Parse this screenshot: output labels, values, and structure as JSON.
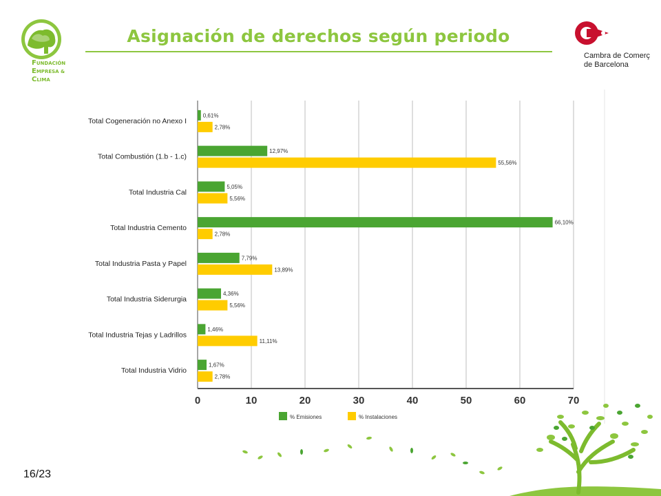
{
  "header": {
    "title": "Asignación de derechos según periodo",
    "logo_left": {
      "initials": [
        "F",
        "E",
        "C"
      ],
      "words": [
        "UNDACIÓN",
        "MPRESA &",
        "LIMA"
      ]
    },
    "logo_right": {
      "line1": "Cambra de Comerç",
      "line2": "de Barcelona"
    }
  },
  "footer": {
    "page": "16/23"
  },
  "colors": {
    "accent": "#8dc63f",
    "emisiones": "#4aa532",
    "instalaciones": "#ffcc00",
    "brand_red": "#c8102e"
  },
  "chart_data": {
    "type": "bar",
    "orientation": "horizontal",
    "title": "",
    "xlabel": "",
    "ylabel": "",
    "xlim": [
      0,
      70
    ],
    "x_ticks": [
      "0",
      "10",
      "20",
      "30",
      "40",
      "50",
      "60",
      "70"
    ],
    "grid": true,
    "legend_position": "bottom",
    "categories": [
      "Total Cogeneración no Anexo I",
      "Total Combustión (1.b - 1.c)",
      "Total Industria Cal",
      "Total Industria Cemento",
      "Total Industria Pasta y Papel",
      "Total Industria Siderurgia",
      "Total Industria Tejas y Ladrillos",
      "Total Industria Vidrio"
    ],
    "series": [
      {
        "name": "% Emisiones",
        "color": "#4aa532",
        "values": [
          0.61,
          12.97,
          5.05,
          66.1,
          7.79,
          4.36,
          1.46,
          1.67
        ],
        "labels": [
          "0,61%",
          "12,97%",
          "5,05%",
          "66,10%",
          "7,79%",
          "4,36%",
          "1,46%",
          "1,67%"
        ]
      },
      {
        "name": "% Instalaciones",
        "color": "#ffcc00",
        "values": [
          2.78,
          55.56,
          5.56,
          2.78,
          13.89,
          5.56,
          11.11,
          2.78
        ],
        "labels": [
          "2,78%",
          "55,56%",
          "5,56%",
          "2,78%",
          "13,89%",
          "5,56%",
          "11,11%",
          "2,78%"
        ]
      }
    ]
  }
}
